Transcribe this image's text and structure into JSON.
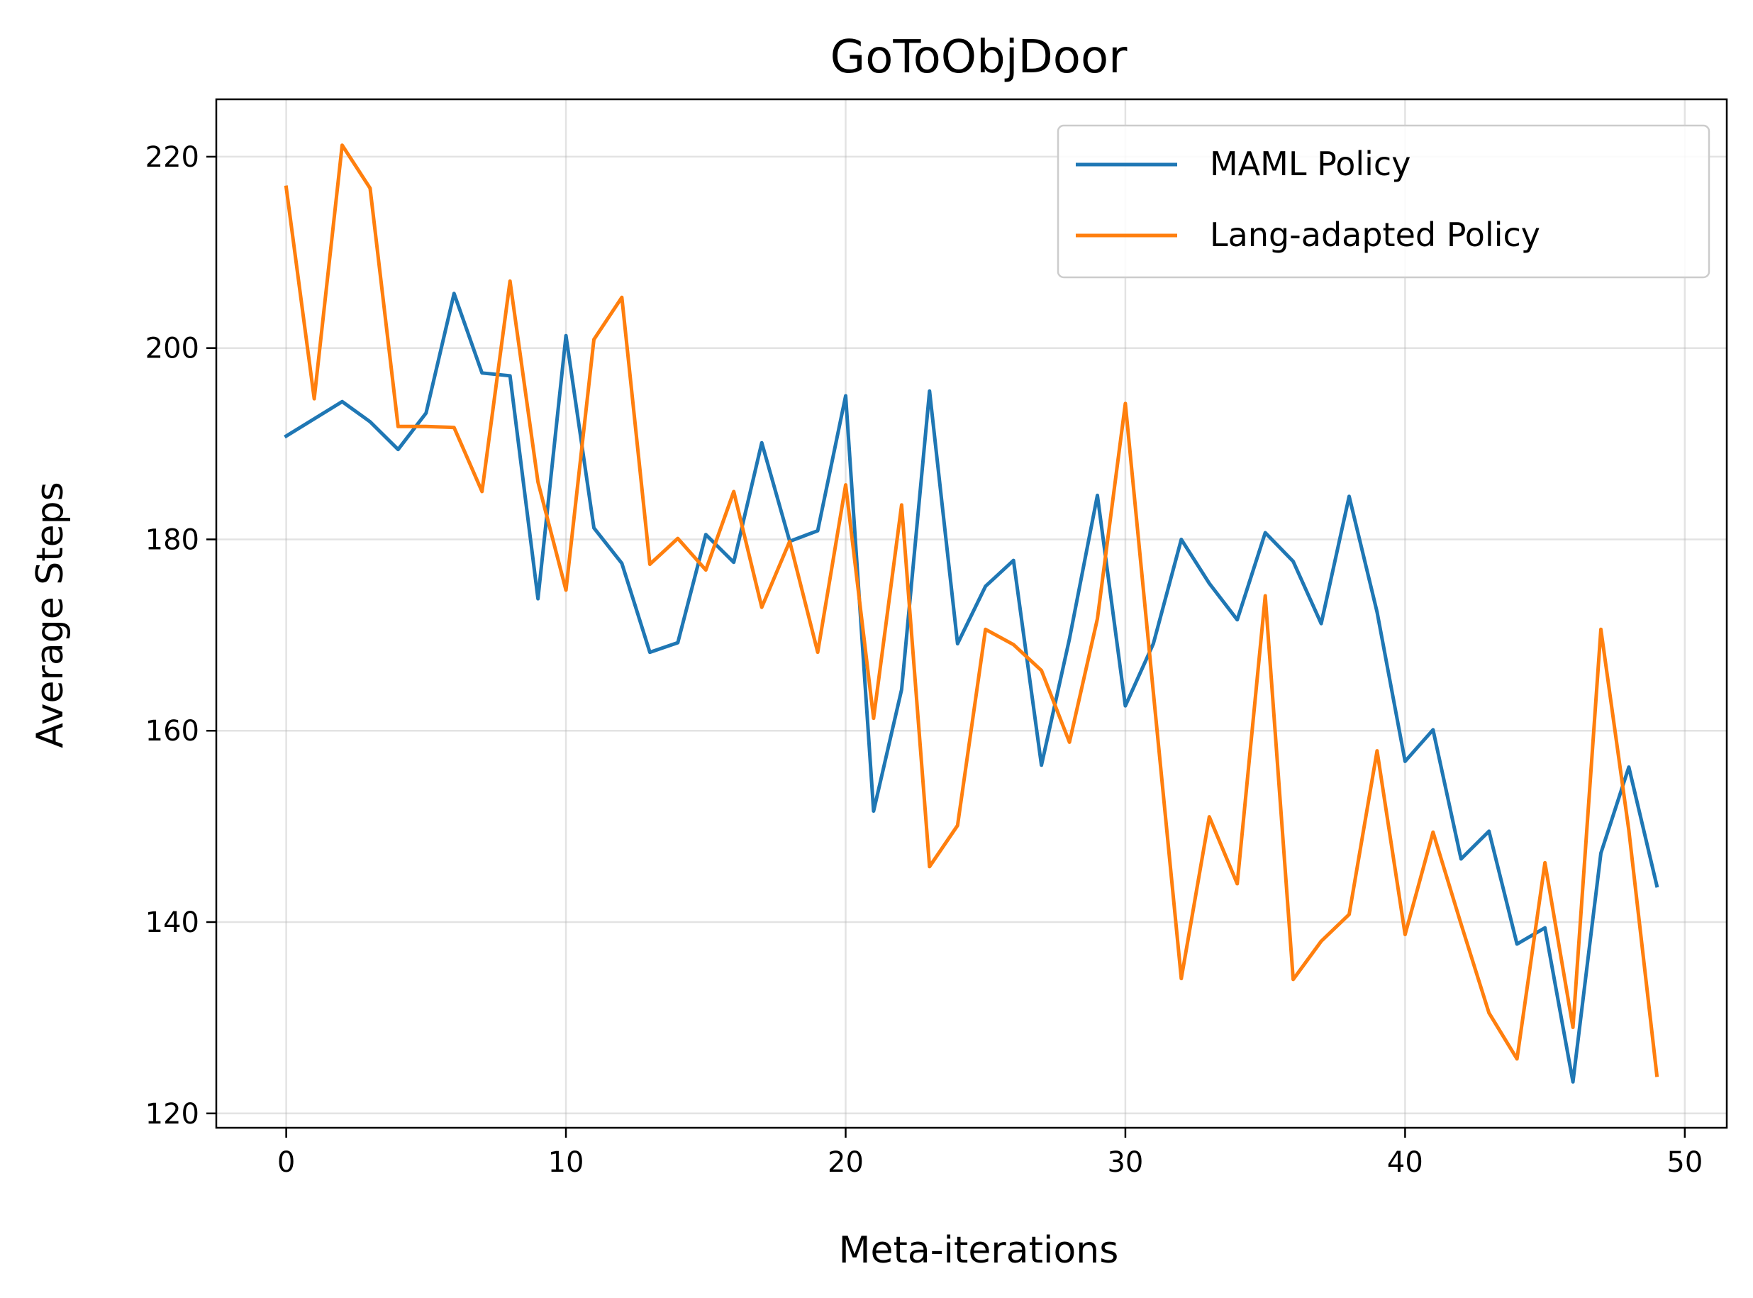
{
  "chart_data": {
    "type": "line",
    "title": "GoToObjDoor",
    "xlabel": "Meta-iterations",
    "ylabel": "Average Steps",
    "xlim": [
      -2.5,
      51.5
    ],
    "ylim": [
      118.5,
      226
    ],
    "xticks": [
      0,
      10,
      20,
      30,
      40,
      50
    ],
    "yticks": [
      120,
      140,
      160,
      180,
      200,
      220
    ],
    "grid": true,
    "legend_position": "top-right",
    "x": [
      0,
      1,
      2,
      3,
      4,
      5,
      6,
      7,
      8,
      9,
      10,
      11,
      12,
      13,
      14,
      15,
      16,
      17,
      18,
      19,
      20,
      21,
      22,
      23,
      24,
      25,
      26,
      27,
      28,
      29,
      30,
      31,
      32,
      33,
      34,
      35,
      36,
      37,
      38,
      39,
      40,
      41,
      42,
      43,
      44,
      45,
      46,
      47,
      48,
      49
    ],
    "series": [
      {
        "name": "MAML Policy",
        "color": "#1f77b4",
        "values": [
          190.8,
          192.6,
          194.4,
          192.3,
          189.4,
          193.2,
          205.7,
          197.4,
          197.1,
          173.8,
          201.3,
          181.2,
          177.5,
          168.2,
          169.2,
          180.5,
          177.6,
          190.1,
          179.8,
          180.9,
          195.0,
          151.6,
          164.3,
          195.5,
          169.1,
          175.1,
          177.8,
          156.4,
          169.6,
          184.6,
          162.6,
          169.1,
          180.0,
          175.4,
          171.6,
          180.7,
          177.7,
          171.2,
          184.5,
          172.4,
          156.8,
          160.1,
          146.6,
          149.5,
          137.7,
          139.4,
          123.3,
          147.2,
          156.2,
          143.8
        ]
      },
      {
        "name": "Lang-adapted Policy",
        "color": "#ff7f0e",
        "values": [
          216.8,
          194.7,
          221.2,
          216.7,
          191.8,
          191.8,
          191.7,
          185.0,
          207.0,
          186.0,
          174.7,
          200.9,
          205.3,
          177.4,
          180.1,
          176.8,
          185.0,
          172.9,
          179.8,
          168.2,
          185.7,
          161.3,
          183.6,
          145.8,
          150.1,
          170.6,
          169.0,
          166.3,
          158.8,
          171.7,
          194.2,
          164.0,
          134.1,
          151.0,
          144.0,
          174.1,
          134.0,
          138.0,
          140.8,
          157.9,
          138.7,
          149.4,
          139.8,
          130.5,
          125.7,
          146.2,
          129.0,
          170.6,
          149.6,
          124.0
        ]
      }
    ]
  }
}
